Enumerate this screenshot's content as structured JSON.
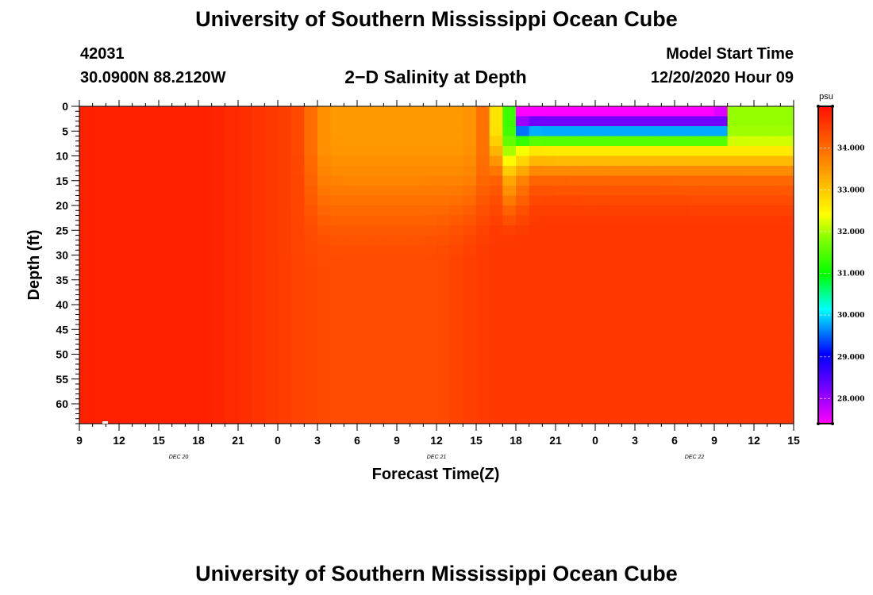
{
  "page": {
    "title_top": "University of Southern Mississippi Ocean Cube",
    "title_bottom": "University of Southern Mississippi Ocean Cube",
    "station_id": "42031",
    "location": "30.0900N 88.2120W",
    "chart_title": "2−D Salinity at Depth",
    "model_label": "Model Start Time",
    "model_time": "12/20/2020 Hour 09"
  },
  "chart_data": {
    "type": "heatmap",
    "title": "2−D Salinity at Depth",
    "xlabel": "Forecast Time(Z)",
    "ylabel": "Depth (ft)",
    "x_tick_labels": [
      "9",
      "12",
      "15",
      "18",
      "21",
      "0",
      "3",
      "6",
      "9",
      "12",
      "15",
      "18",
      "21",
      "0",
      "3",
      "6",
      "9",
      "12",
      "15"
    ],
    "x_hours": [
      0,
      3,
      6,
      9,
      12,
      15,
      18,
      21,
      24,
      27,
      30,
      33,
      36,
      39,
      42,
      45,
      48,
      51,
      54
    ],
    "date_labels": [
      {
        "label": "DEC 20",
        "hour": 7.5
      },
      {
        "label": "DEC 21",
        "hour": 27
      },
      {
        "label": "DEC 22",
        "hour": 46.5
      }
    ],
    "xlim_hours": [
      0,
      54
    ],
    "ylim": [
      0,
      64
    ],
    "y_tick_labels": [
      "0",
      "5",
      "10",
      "15",
      "20",
      "25",
      "30",
      "35",
      "40",
      "45",
      "50",
      "55",
      "60"
    ],
    "y_values": [
      0,
      5,
      10,
      15,
      20,
      25,
      30,
      35,
      40,
      45,
      50,
      55,
      60
    ],
    "y_inverted": true,
    "colorbar": {
      "unit": "psu",
      "range": [
        27.4,
        35.0
      ],
      "tick_labels": [
        "34.000",
        "33.000",
        "32.000",
        "31.000",
        "30.000",
        "29.000",
        "28.000"
      ],
      "tick_values": [
        34,
        33,
        32,
        31,
        30,
        29,
        28
      ]
    },
    "grid": false
  }
}
